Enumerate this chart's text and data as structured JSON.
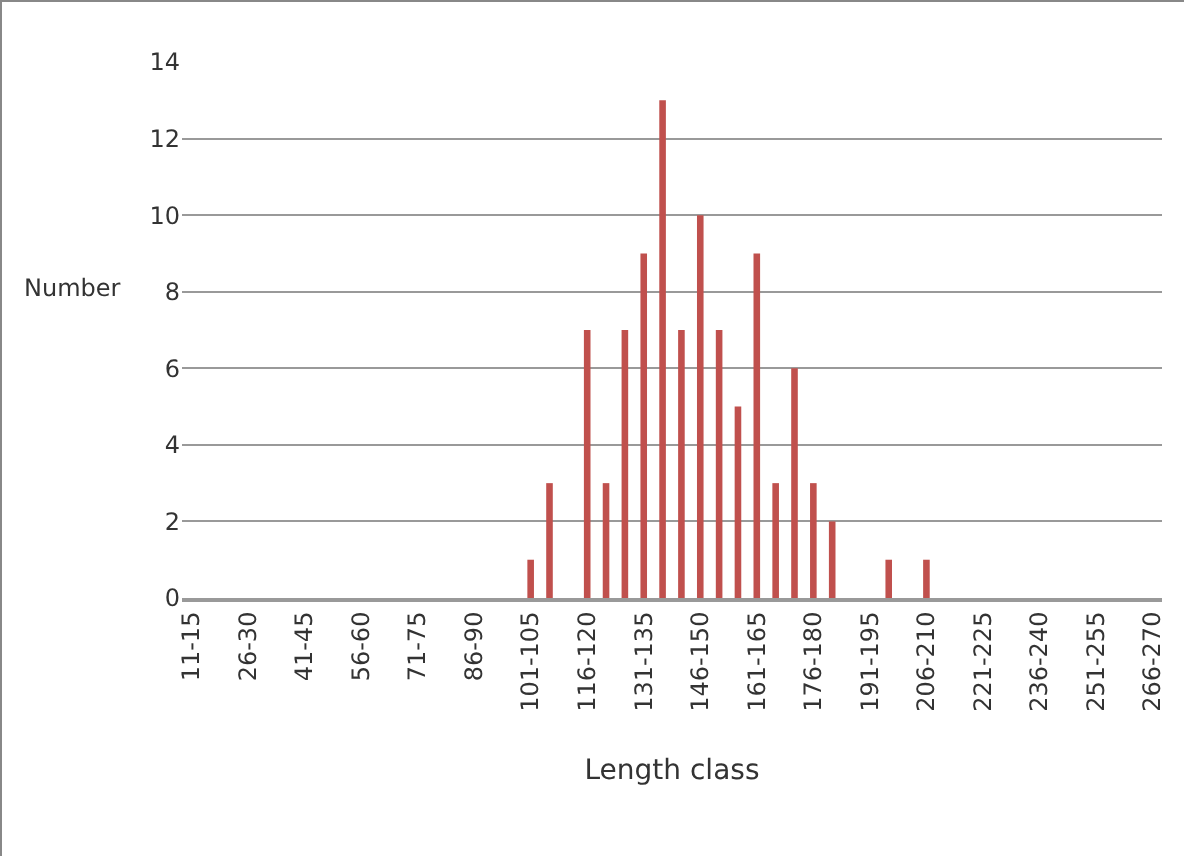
{
  "chart_data": {
    "type": "bar",
    "xlabel": "Length class",
    "ylabel": "Number",
    "categories": [
      "11-15",
      null,
      null,
      "26-30",
      null,
      null,
      "41-45",
      null,
      null,
      "56-60",
      null,
      null,
      "71-75",
      null,
      null,
      "86-90",
      null,
      null,
      "101-105",
      null,
      null,
      "116-120",
      null,
      null,
      "131-135",
      null,
      null,
      "146-150",
      null,
      null,
      "161-165",
      null,
      null,
      "176-180",
      null,
      null,
      "191-195",
      null,
      null,
      "206-210",
      null,
      null,
      "221-225",
      null,
      null,
      "236-240",
      null,
      null,
      "251-255",
      null,
      null,
      "266-270"
    ],
    "values": [
      0,
      0,
      0,
      0,
      0,
      0,
      0,
      0,
      0,
      0,
      0,
      0,
      0,
      0,
      0,
      0,
      0,
      0,
      1,
      3,
      0,
      7,
      3,
      7,
      9,
      13,
      7,
      10,
      7,
      5,
      9,
      3,
      6,
      3,
      2,
      0,
      0,
      1,
      0,
      1,
      0,
      0,
      0,
      0,
      0,
      0,
      0,
      0,
      0,
      0,
      0,
      0
    ],
    "color": "#c0504d",
    "ylim": [
      0,
      14
    ],
    "yticks": [
      0,
      2,
      4,
      6,
      8,
      10,
      12,
      14
    ],
    "grid": "y"
  }
}
